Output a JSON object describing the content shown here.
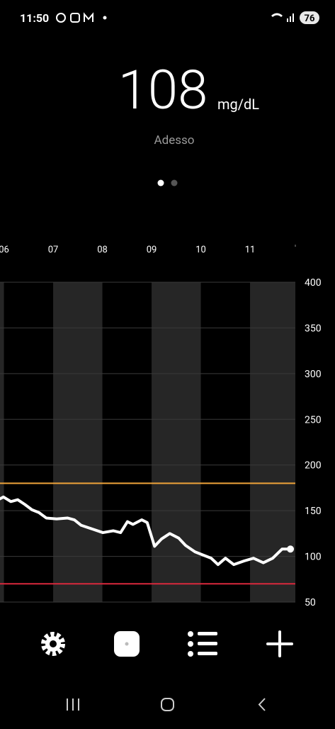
{
  "status_bar": {
    "time": "11:50",
    "battery": "76"
  },
  "reading": {
    "value": "108",
    "unit": "mg/dL",
    "label": "Adesso"
  },
  "chart_data": {
    "type": "line",
    "x": [
      5.92,
      5.99,
      6.14,
      6.28,
      6.42,
      6.57,
      6.71,
      6.86,
      7.07,
      7.29,
      7.43,
      7.57,
      7.79,
      8.01,
      8.22,
      8.37,
      8.51,
      8.62,
      8.8,
      8.91,
      9.06,
      9.2,
      9.37,
      9.55,
      9.69,
      9.88,
      10.02,
      10.21,
      10.35,
      10.5,
      10.67,
      10.88,
      11.07,
      11.27,
      11.46,
      11.65,
      11.82
    ],
    "values": [
      163,
      165,
      160,
      162,
      157,
      151,
      148,
      142,
      141,
      142,
      140,
      134,
      130,
      126,
      128,
      126,
      138,
      135,
      140,
      137,
      111,
      119,
      125,
      120,
      112,
      105,
      102,
      98,
      91,
      98,
      91,
      95,
      98,
      93,
      98,
      108,
      108
    ],
    "color": "#ffffff",
    "xlim": [
      5.92,
      11.92
    ],
    "xticks": [
      {
        "value": 6,
        "label": "06"
      },
      {
        "value": 7,
        "label": "07"
      },
      {
        "value": 8,
        "label": "08"
      },
      {
        "value": 9,
        "label": "09"
      },
      {
        "value": 10,
        "label": "10"
      },
      {
        "value": 11,
        "label": "11"
      }
    ],
    "ylim": [
      50,
      400
    ],
    "yticks": [
      50,
      100,
      150,
      200,
      250,
      300,
      350,
      400
    ],
    "grid": true,
    "target_high": 180,
    "target_high_color": "#f0a43a",
    "target_low": 70,
    "target_low_color": "#d9283c"
  }
}
